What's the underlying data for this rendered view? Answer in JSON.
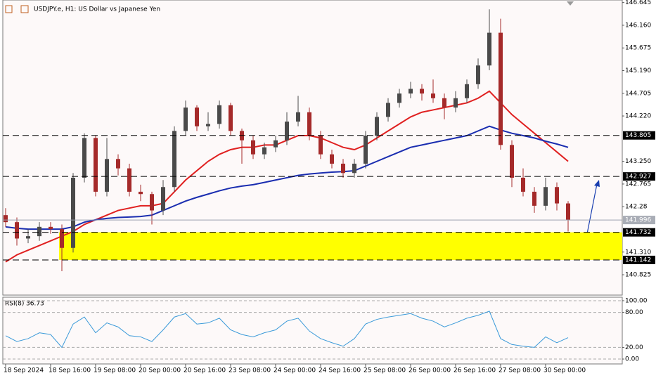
{
  "chart_data": [
    {
      "type": "candlestick",
      "title": "USDJPY.e, H1:  US Dollar vs Japanese Yen",
      "categories": [
        "18 Sep 2024",
        null,
        null,
        null,
        "18 Sep 16:00",
        null,
        null,
        null,
        "19 Sep 08:00",
        null,
        null,
        null,
        "20 Sep 00:00",
        null,
        null,
        null,
        "20 Sep 16:00",
        null,
        null,
        null,
        "23 Sep 08:00",
        null,
        null,
        null,
        "24 Sep 00:00",
        null,
        null,
        null,
        "24 Sep 16:00",
        null,
        null,
        null,
        "25 Sep 08:00",
        null,
        null,
        null,
        "26 Sep 00:00",
        null,
        null,
        null,
        "26 Sep 16:00",
        null,
        null,
        null,
        "27 Sep 08:00",
        null,
        null,
        null,
        "30 Sep 00:00",
        null,
        null
      ],
      "open": [
        142.1,
        141.95,
        141.6,
        141.65,
        141.85,
        141.8,
        141.4,
        142.9,
        143.75,
        142.6,
        143.3,
        143.1,
        142.6,
        142.55,
        142.2,
        142.7,
        143.9,
        144.4,
        144.0,
        144.05,
        144.45,
        143.9,
        143.7,
        143.4,
        143.55,
        143.7,
        144.1,
        144.3,
        143.8,
        143.4,
        143.2,
        143.0,
        143.2,
        143.8,
        144.2,
        144.5,
        144.7,
        144.8,
        144.7,
        144.6,
        144.4,
        144.6,
        144.9,
        145.3,
        146.0,
        143.6,
        142.9,
        142.6,
        142.3,
        142.7,
        142.35
      ],
      "high": [
        142.25,
        142.05,
        141.8,
        141.95,
        141.95,
        141.9,
        143.0,
        143.85,
        143.8,
        143.75,
        143.4,
        143.2,
        142.75,
        142.6,
        142.85,
        144.0,
        144.55,
        144.45,
        144.3,
        144.55,
        144.5,
        143.95,
        143.8,
        143.65,
        143.8,
        144.3,
        144.65,
        144.4,
        143.9,
        143.5,
        143.3,
        143.3,
        143.9,
        144.3,
        144.6,
        144.8,
        144.95,
        144.9,
        145.0,
        144.7,
        144.75,
        145.0,
        145.45,
        146.5,
        146.3,
        143.7,
        143.1,
        142.7,
        142.9,
        142.8,
        142.4
      ],
      "low": [
        141.85,
        141.45,
        141.5,
        141.55,
        141.7,
        140.9,
        141.3,
        142.8,
        142.5,
        142.5,
        142.95,
        142.5,
        142.4,
        141.9,
        142.1,
        142.6,
        143.8,
        143.9,
        143.9,
        143.95,
        143.8,
        143.2,
        143.3,
        143.3,
        143.45,
        143.6,
        144.0,
        143.7,
        143.3,
        143.1,
        142.9,
        142.9,
        143.1,
        143.7,
        144.1,
        144.4,
        144.6,
        144.55,
        144.5,
        144.15,
        144.3,
        144.5,
        144.8,
        145.2,
        143.5,
        142.7,
        142.5,
        142.15,
        142.2,
        142.2,
        141.75
      ],
      "close": [
        141.95,
        141.6,
        141.65,
        141.85,
        141.8,
        141.4,
        142.9,
        143.75,
        142.6,
        143.3,
        143.1,
        142.6,
        142.55,
        142.2,
        142.7,
        143.9,
        144.4,
        144.0,
        144.05,
        144.45,
        143.9,
        143.7,
        143.4,
        143.55,
        143.7,
        144.1,
        144.3,
        143.8,
        143.4,
        143.2,
        143.0,
        143.2,
        143.8,
        144.2,
        144.5,
        144.7,
        144.8,
        144.7,
        144.6,
        144.4,
        144.6,
        144.9,
        145.3,
        146.0,
        143.6,
        142.9,
        142.6,
        142.3,
        142.7,
        142.35,
        142.0
      ],
      "up_color": "#4a4a4a",
      "down_color": "#a52a2a",
      "series": [
        {
          "color": "#e02020",
          "values": [
            141.1,
            141.25,
            141.35,
            141.45,
            141.55,
            141.65,
            141.75,
            141.9,
            142.0,
            142.1,
            142.2,
            142.25,
            142.3,
            142.3,
            142.35,
            142.6,
            142.85,
            143.05,
            143.25,
            143.4,
            143.5,
            143.55,
            143.55,
            143.6,
            143.6,
            143.7,
            143.8,
            143.8,
            143.75,
            143.65,
            143.55,
            143.5,
            143.6,
            143.75,
            143.9,
            144.05,
            144.2,
            144.3,
            144.35,
            144.4,
            144.45,
            144.5,
            144.6,
            144.75,
            144.5,
            144.25,
            144.05,
            143.85,
            143.65,
            143.45,
            143.25
          ]
        },
        {
          "color": "#1a2db0",
          "values": [
            141.85,
            141.82,
            141.8,
            141.8,
            141.8,
            141.8,
            141.85,
            141.95,
            142.0,
            142.03,
            142.05,
            142.06,
            142.07,
            142.1,
            142.2,
            142.3,
            142.4,
            142.48,
            142.55,
            142.62,
            142.68,
            142.72,
            142.75,
            142.8,
            142.85,
            142.9,
            142.95,
            142.98,
            143.0,
            143.02,
            143.03,
            143.05,
            143.15,
            143.25,
            143.35,
            143.45,
            143.55,
            143.6,
            143.65,
            143.7,
            143.75,
            143.8,
            143.9,
            144.0,
            143.92,
            143.85,
            143.8,
            143.75,
            143.68,
            143.62,
            143.55
          ]
        }
      ],
      "levels": [
        143.805,
        142.927,
        141.732,
        141.142
      ],
      "price": 141.996,
      "zone_color": "#ffff00",
      "ylim": [
        140.39,
        146.7
      ],
      "yticks": [
        146.645,
        {
          "value": 146.16,
          "label": "146.160"
        },
        145.675,
        {
          "value": 145.19,
          "label": "145.190"
        },
        144.705,
        {
          "value": 144.22,
          "label": "144.220"
        },
        {
          "value": 143.25,
          "label": "143.250"
        },
        142.765,
        142.28,
        {
          "value": 141.31,
          "label": "141.310"
        },
        140.825
      ]
    },
    {
      "type": "line",
      "title": "RSI(8)",
      "series": [
        {
          "color": "#3b9ad9",
          "values": [
            40,
            30,
            35,
            45,
            42,
            20,
            60,
            72,
            45,
            62,
            55,
            40,
            38,
            30,
            50,
            72,
            78,
            60,
            62,
            70,
            50,
            42,
            38,
            45,
            50,
            65,
            70,
            48,
            35,
            28,
            22,
            35,
            60,
            68,
            72,
            75,
            78,
            70,
            65,
            55,
            62,
            70,
            75,
            82,
            35,
            25,
            22,
            20,
            38,
            28,
            36.73
          ]
        }
      ],
      "ylim": [
        -8.4,
        106
      ],
      "yticks": [
        {
          "value": 100,
          "label": "100.00"
        },
        {
          "value": 80,
          "label": "80.00"
        },
        {
          "value": 20,
          "label": "20.00"
        },
        {
          "value": 0,
          "label": "0.00"
        }
      ]
    }
  ]
}
